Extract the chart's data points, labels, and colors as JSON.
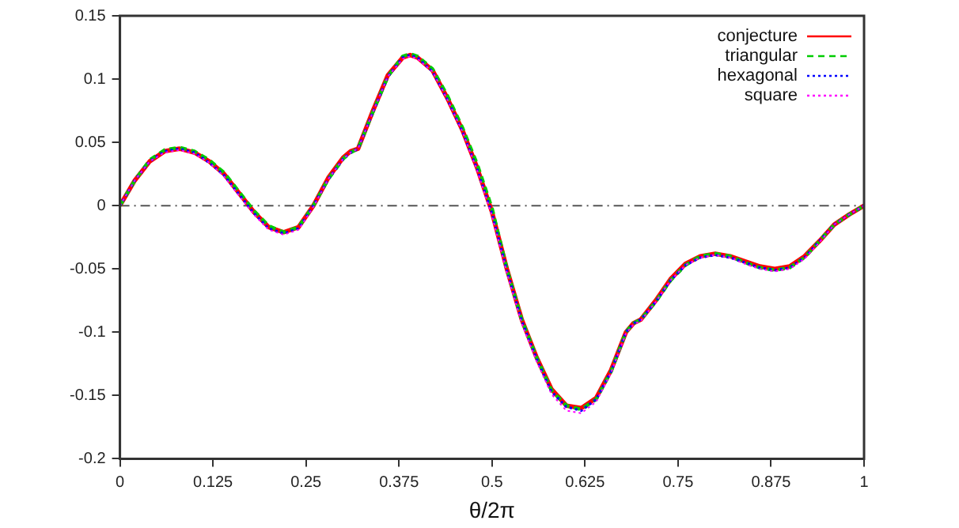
{
  "chart_data": {
    "type": "line",
    "xlabel": "θ/2π",
    "x": [
      0,
      0.02,
      0.04,
      0.06,
      0.08,
      0.1,
      0.12,
      0.14,
      0.16,
      0.18,
      0.2,
      0.22,
      0.24,
      0.26,
      0.28,
      0.3,
      0.31,
      0.32,
      0.34,
      0.36,
      0.38,
      0.39,
      0.4,
      0.42,
      0.44,
      0.46,
      0.48,
      0.5,
      0.52,
      0.54,
      0.56,
      0.58,
      0.6,
      0.62,
      0.64,
      0.66,
      0.68,
      0.69,
      0.7,
      0.72,
      0.74,
      0.76,
      0.78,
      0.8,
      0.82,
      0.84,
      0.86,
      0.88,
      0.9,
      0.92,
      0.94,
      0.96,
      0.98,
      1
    ],
    "series": [
      {
        "name": "conjecture",
        "color": "#ff0000",
        "line_style": "solid",
        "values": [
          0,
          0.02,
          0.035,
          0.043,
          0.045,
          0.042,
          0.035,
          0.025,
          0.01,
          -0.005,
          -0.017,
          -0.021,
          -0.017,
          0,
          0.022,
          0.038,
          0.043,
          0.045,
          0.075,
          0.103,
          0.117,
          0.119,
          0.117,
          0.107,
          0.085,
          0.06,
          0.03,
          -0.005,
          -0.05,
          -0.09,
          -0.12,
          -0.145,
          -0.158,
          -0.16,
          -0.152,
          -0.13,
          -0.1,
          -0.093,
          -0.09,
          -0.075,
          -0.058,
          -0.046,
          -0.04,
          -0.038,
          -0.04,
          -0.044,
          -0.048,
          -0.05,
          -0.048,
          -0.04,
          -0.028,
          -0.015,
          -0.007,
          0
        ]
      },
      {
        "name": "triangular",
        "color": "#00cc00",
        "line_style": "dashed",
        "values": [
          0,
          0.02,
          0.036,
          0.044,
          0.046,
          0.043,
          0.036,
          0.026,
          0.011,
          -0.004,
          -0.016,
          -0.021,
          -0.017,
          0,
          0.021,
          0.037,
          0.042,
          0.045,
          0.074,
          0.102,
          0.118,
          0.12,
          0.118,
          0.108,
          0.087,
          0.062,
          0.033,
          -0.002,
          -0.05,
          -0.09,
          -0.12,
          -0.146,
          -0.158,
          -0.161,
          -0.153,
          -0.131,
          -0.1,
          -0.093,
          -0.09,
          -0.076,
          -0.059,
          -0.047,
          -0.04,
          -0.038,
          -0.04,
          -0.045,
          -0.049,
          -0.051,
          -0.049,
          -0.041,
          -0.028,
          -0.015,
          -0.007,
          0
        ]
      },
      {
        "name": "hexagonal",
        "color": "#0000ff",
        "line_style": "dotted",
        "values": [
          0,
          0.02,
          0.035,
          0.043,
          0.045,
          0.042,
          0.034,
          0.024,
          0.009,
          -0.006,
          -0.018,
          -0.022,
          -0.018,
          0,
          0.021,
          0.037,
          0.042,
          0.045,
          0.074,
          0.102,
          0.117,
          0.119,
          0.117,
          0.106,
          0.084,
          0.059,
          0.029,
          -0.006,
          -0.051,
          -0.091,
          -0.121,
          -0.147,
          -0.159,
          -0.162,
          -0.153,
          -0.131,
          -0.1,
          -0.093,
          -0.09,
          -0.076,
          -0.059,
          -0.047,
          -0.041,
          -0.039,
          -0.041,
          -0.045,
          -0.049,
          -0.051,
          -0.049,
          -0.041,
          -0.028,
          -0.015,
          -0.007,
          0
        ]
      },
      {
        "name": "square",
        "color": "#ff00ff",
        "line_style": "dotted",
        "values": [
          0,
          0.02,
          0.035,
          0.042,
          0.044,
          0.041,
          0.034,
          0.023,
          0.008,
          -0.007,
          -0.019,
          -0.023,
          -0.019,
          -0.001,
          0.021,
          0.037,
          0.042,
          0.045,
          0.074,
          0.102,
          0.116,
          0.118,
          0.116,
          0.106,
          0.084,
          0.059,
          0.028,
          -0.008,
          -0.053,
          -0.093,
          -0.123,
          -0.149,
          -0.162,
          -0.164,
          -0.155,
          -0.132,
          -0.101,
          -0.094,
          -0.091,
          -0.076,
          -0.059,
          -0.047,
          -0.041,
          -0.039,
          -0.041,
          -0.046,
          -0.05,
          -0.052,
          -0.05,
          -0.042,
          -0.029,
          -0.015,
          -0.007,
          0
        ]
      }
    ],
    "xlim": [
      0,
      1
    ],
    "xticks": [
      0,
      0.125,
      0.25,
      0.375,
      0.5,
      0.625,
      0.75,
      0.875,
      1
    ],
    "ylim": [
      -0.2,
      0.15
    ],
    "yticks": [
      -0.2,
      -0.15,
      -0.1,
      -0.05,
      0,
      0.05,
      0.1,
      0.15
    ],
    "ref_lines": [
      {
        "axis": "y",
        "value": 0,
        "color": "#555555",
        "line_style": "dashed"
      }
    ],
    "grid": false,
    "legend": "top right",
    "marker": "none"
  }
}
